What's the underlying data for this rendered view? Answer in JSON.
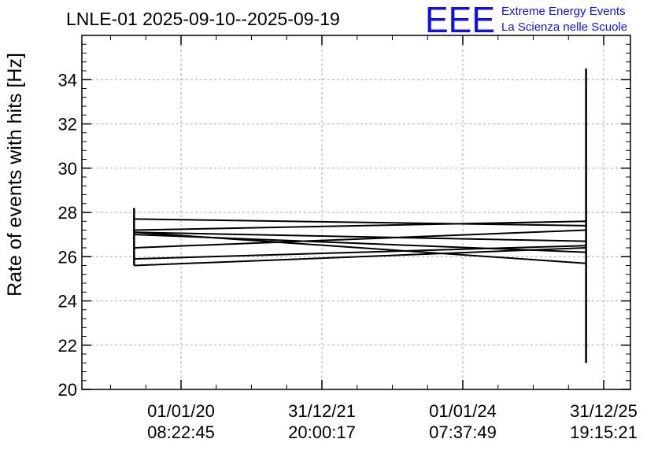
{
  "chart_data": {
    "type": "line",
    "title": "LNLE-01 2025-09-10--2025-09-19",
    "ylabel": "Rate of events with hits [Hz]",
    "xlabel": "",
    "ylim": [
      20,
      36
    ],
    "yticks": [
      20,
      22,
      24,
      26,
      28,
      30,
      32,
      34
    ],
    "xticks": [
      {
        "date": "01/01/20",
        "time": "08:22:45"
      },
      {
        "date": "31/12/21",
        "time": "20:00:17"
      },
      {
        "date": "01/01/24",
        "time": "07:37:49"
      },
      {
        "date": "31/12/25",
        "time": "19:15:21"
      }
    ],
    "grid": true,
    "series": [
      {
        "x": [
          "2019-05",
          "2025-10"
        ],
        "y": [
          27.7,
          27.4
        ]
      },
      {
        "x": [
          "2019-05",
          "2025-10"
        ],
        "y": [
          27.2,
          27.6
        ]
      },
      {
        "x": [
          "2019-05",
          "2025-10"
        ],
        "y": [
          27.1,
          26.7
        ]
      },
      {
        "x": [
          "2019-05",
          "2025-10"
        ],
        "y": [
          27.0,
          26.2
        ]
      },
      {
        "x": [
          "2019-05",
          "2025-10"
        ],
        "y": [
          26.4,
          27.2
        ]
      },
      {
        "x": [
          "2019-05",
          "2025-10"
        ],
        "y": [
          25.9,
          26.5
        ]
      },
      {
        "x": [
          "2019-05",
          "2025-10"
        ],
        "y": [
          25.6,
          26.4
        ]
      },
      {
        "x": [
          "2019-05",
          "2025-10"
        ],
        "y": [
          27.1,
          25.7
        ]
      }
    ],
    "error_bars": [
      {
        "x": "2019-05",
        "y": 27.0,
        "low": 25.6,
        "high": 28.2
      },
      {
        "x": "2025-10",
        "y": 28.0,
        "low": 21.2,
        "high": 34.5
      }
    ]
  },
  "logo": {
    "letters": "EEE",
    "line1": "Extreme Energy Events",
    "line2": "La Scienza nelle Scuole"
  }
}
